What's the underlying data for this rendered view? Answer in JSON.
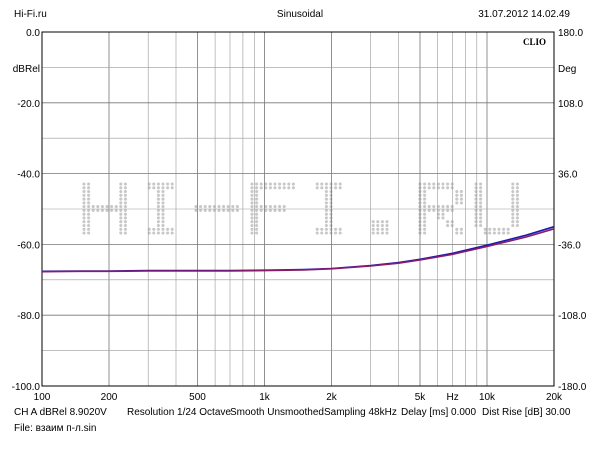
{
  "header": {
    "left": "Hi-Fi.ru",
    "center": "Sinusoidal",
    "right": "31.07.2012 14.02.49"
  },
  "footer": {
    "line1": [
      "CH A  dBRel 8.9020V",
      "Resolution 1/24 Octave",
      "Smooth Unsmoothed",
      "Sampling 48kHz",
      "Delay [ms] 0.000",
      "Dist Rise [dB] 30.00"
    ],
    "file": "File: взаим п-л.sin"
  },
  "watermark": {
    "text": "HI-FI.RU",
    "color": "#c8c8c8"
  },
  "chart_data": {
    "type": "line",
    "brand": "CLIO",
    "ylabel": "dBRel",
    "y2label": "Deg",
    "xlabel_unit": "Hz",
    "x_scale": "log",
    "xlim": [
      100,
      20000
    ],
    "ylim": [
      -100,
      0
    ],
    "y2lim": [
      -180,
      180
    ],
    "grid": true,
    "x_ticks": [
      {
        "value": 100,
        "label": "100"
      },
      {
        "value": 200,
        "label": "200"
      },
      {
        "value": 500,
        "label": "500"
      },
      {
        "value": 1000,
        "label": "1k"
      },
      {
        "value": 2000,
        "label": "2k"
      },
      {
        "value": 5000,
        "label": "5k"
      },
      {
        "value": 10000,
        "label": "10k"
      },
      {
        "value": 20000,
        "label": "20k"
      }
    ],
    "x_unit_tick_value": 7000,
    "x_minor": [
      300,
      400,
      600,
      700,
      800,
      900,
      3000,
      4000,
      6000,
      7000,
      8000,
      9000
    ],
    "y_ticks": [
      {
        "value": 0,
        "label": "0.0"
      },
      {
        "value": -20,
        "label": "-20.0"
      },
      {
        "value": -40,
        "label": "-40.0"
      },
      {
        "value": -60,
        "label": "-60.0"
      },
      {
        "value": -80,
        "label": "-80.0"
      },
      {
        "value": -100,
        "label": "-100.0"
      }
    ],
    "y2_ticks": [
      {
        "value": 180,
        "label": "180.0"
      },
      {
        "value": 108,
        "label": "108.0"
      },
      {
        "value": 36,
        "label": "36.0"
      },
      {
        "value": -36,
        "label": "-36.0"
      },
      {
        "value": -108,
        "label": "-108.0"
      },
      {
        "value": -180,
        "label": "-180.0"
      }
    ],
    "series": [
      {
        "color": "#1a1ab0",
        "x": [
          100,
          150,
          200,
          300,
          500,
          700,
          1000,
          1500,
          2000,
          3000,
          4000,
          5000,
          7000,
          10000,
          15000,
          20000
        ],
        "y": [
          -67.6,
          -67.5,
          -67.5,
          -67.4,
          -67.4,
          -67.4,
          -67.3,
          -67.1,
          -66.8,
          -66.0,
          -65.1,
          -64.2,
          -62.5,
          -60.2,
          -57.4,
          -55.0
        ]
      },
      {
        "color": "#8a1a6a",
        "x": [
          100,
          150,
          200,
          300,
          500,
          700,
          1000,
          1500,
          2000,
          3000,
          4000,
          5000,
          7000,
          10000,
          15000,
          20000
        ],
        "y": [
          -67.7,
          -67.6,
          -67.6,
          -67.5,
          -67.5,
          -67.5,
          -67.4,
          -67.2,
          -66.9,
          -66.1,
          -65.3,
          -64.4,
          -62.8,
          -60.6,
          -57.9,
          -55.6
        ]
      }
    ]
  }
}
